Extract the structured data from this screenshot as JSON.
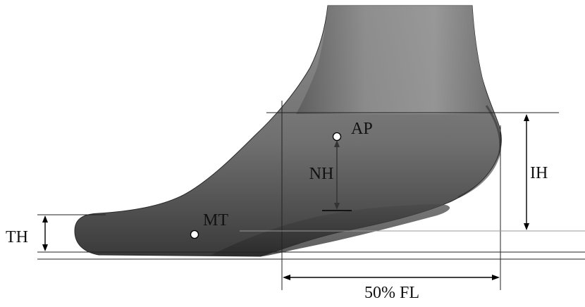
{
  "labels": {
    "ap": "AP",
    "nh": "NH",
    "ih": "IH",
    "mt": "MT",
    "th": "TH",
    "fl": "50% FL"
  },
  "colors": {
    "skin_dark": "#3c3c3c",
    "skin_mid": "#7a7a7a",
    "skin_light": "#a8a8a8",
    "line": "#000000"
  }
}
